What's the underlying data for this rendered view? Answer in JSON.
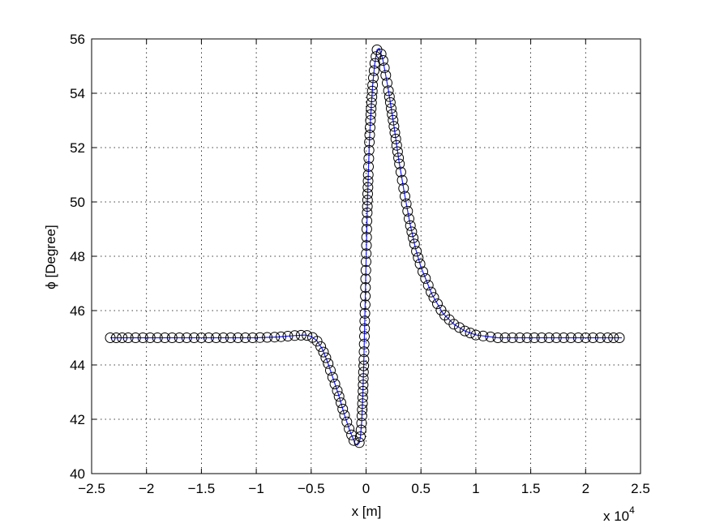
{
  "chart_data": {
    "type": "line",
    "xlabel": "x [m]",
    "ylabel": "ϕ [Degree]",
    "x_exponent_label": "x 10",
    "x_exponent_power": "4",
    "xlim": [
      -2.5,
      2.5
    ],
    "ylim": [
      40,
      56
    ],
    "xticks": [
      -2.5,
      -2,
      -1.5,
      -1,
      -0.5,
      0,
      0.5,
      1,
      1.5,
      2,
      2.5
    ],
    "xtick_labels": [
      "−2.5",
      "−2",
      "−1.5",
      "−1",
      "−0.5",
      "0",
      "0.5",
      "1",
      "1.5",
      "2",
      "2.5"
    ],
    "yticks": [
      40,
      42,
      44,
      46,
      48,
      50,
      52,
      54,
      56
    ],
    "ytick_labels": [
      "40",
      "42",
      "44",
      "46",
      "48",
      "50",
      "52",
      "54",
      "56"
    ],
    "grid": true,
    "line_color": "#1a1aff",
    "marker_color": "#000000",
    "series": [
      {
        "style": "line+circle-markers",
        "x": [
          -2.33,
          -2.2,
          -2.0,
          -1.8,
          -1.6,
          -1.4,
          -1.2,
          -1.0,
          -0.8,
          -0.65,
          -0.55,
          -0.5,
          -0.45,
          -0.4,
          -0.35,
          -0.3,
          -0.25,
          -0.2,
          -0.15,
          -0.12,
          -0.1,
          -0.08,
          -0.06,
          -0.05,
          -0.04,
          -0.03,
          -0.02,
          -0.01,
          0.0,
          0.01,
          0.02,
          0.03,
          0.04,
          0.06,
          0.08,
          0.1,
          0.12,
          0.15,
          0.2,
          0.25,
          0.3,
          0.35,
          0.4,
          0.45,
          0.5,
          0.6,
          0.7,
          0.8,
          0.9,
          1.0,
          1.2,
          1.4,
          1.6,
          1.8,
          2.0,
          2.2,
          2.33
        ],
        "y": [
          45.0,
          45.0,
          45.0,
          45.0,
          45.0,
          45.0,
          45.0,
          45.0,
          45.03,
          45.08,
          45.1,
          45.05,
          44.9,
          44.6,
          44.1,
          43.5,
          42.9,
          42.2,
          41.6,
          41.3,
          41.1,
          41.05,
          41.15,
          41.4,
          41.9,
          42.8,
          44.2,
          45.9,
          47.8,
          49.6,
          51.0,
          52.2,
          53.0,
          54.3,
          55.1,
          55.6,
          55.65,
          55.3,
          54.2,
          52.9,
          51.5,
          50.3,
          49.2,
          48.3,
          47.6,
          46.6,
          45.9,
          45.5,
          45.25,
          45.1,
          45.0,
          45.0,
          45.0,
          45.0,
          45.0,
          45.0,
          45.0
        ]
      }
    ]
  }
}
